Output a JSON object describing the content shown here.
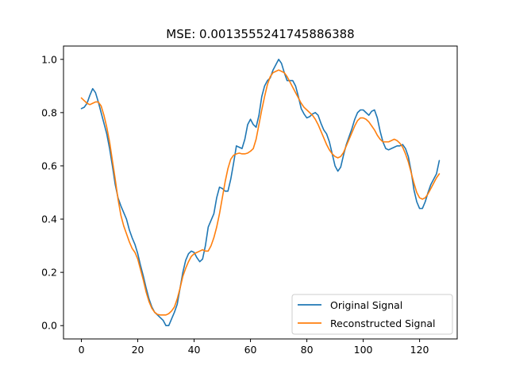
{
  "chart_data": {
    "type": "line",
    "title": "MSE: 0.0013555241745886388",
    "xlabel": "",
    "ylabel": "",
    "xlim": [
      -6.35,
      133.35
    ],
    "ylim": [
      -0.05,
      1.05
    ],
    "xticks": [
      0,
      20,
      40,
      60,
      80,
      100,
      120
    ],
    "xtick_labels": [
      "0",
      "20",
      "40",
      "60",
      "80",
      "100",
      "120"
    ],
    "yticks": [
      0.0,
      0.2,
      0.4,
      0.6,
      0.8,
      1.0
    ],
    "ytick_labels": [
      "0.0",
      "0.2",
      "0.4",
      "0.6",
      "0.8",
      "1.0"
    ],
    "grid": false,
    "legend_position": "lower-right",
    "series": [
      {
        "name": "Original Signal",
        "color": "#1f77b4",
        "x": [
          0,
          1,
          2,
          3,
          4,
          5,
          6,
          7,
          8,
          9,
          10,
          11,
          12,
          13,
          14,
          15,
          16,
          17,
          18,
          19,
          20,
          21,
          22,
          23,
          24,
          25,
          26,
          27,
          28,
          29,
          30,
          31,
          32,
          33,
          34,
          35,
          36,
          37,
          38,
          39,
          40,
          41,
          42,
          43,
          44,
          45,
          46,
          47,
          48,
          49,
          50,
          51,
          52,
          53,
          54,
          55,
          56,
          57,
          58,
          59,
          60,
          61,
          62,
          63,
          64,
          65,
          66,
          67,
          68,
          69,
          70,
          71,
          72,
          73,
          74,
          75,
          76,
          77,
          78,
          79,
          80,
          81,
          82,
          83,
          84,
          85,
          86,
          87,
          88,
          89,
          90,
          91,
          92,
          93,
          94,
          95,
          96,
          97,
          98,
          99,
          100,
          101,
          102,
          103,
          104,
          105,
          106,
          107,
          108,
          109,
          110,
          111,
          112,
          113,
          114,
          115,
          116,
          117,
          118,
          119,
          120,
          121,
          122,
          123,
          124,
          125,
          126,
          127
        ],
        "values": [
          0.815,
          0.82,
          0.835,
          0.865,
          0.89,
          0.875,
          0.84,
          0.8,
          0.76,
          0.72,
          0.665,
          0.6,
          0.53,
          0.48,
          0.45,
          0.425,
          0.4,
          0.36,
          0.33,
          0.305,
          0.27,
          0.225,
          0.185,
          0.14,
          0.1,
          0.07,
          0.05,
          0.04,
          0.03,
          0.02,
          0.0,
          0.0,
          0.025,
          0.05,
          0.08,
          0.14,
          0.2,
          0.245,
          0.27,
          0.28,
          0.275,
          0.255,
          0.24,
          0.25,
          0.3,
          0.37,
          0.395,
          0.42,
          0.48,
          0.52,
          0.515,
          0.505,
          0.505,
          0.55,
          0.61,
          0.675,
          0.67,
          0.665,
          0.7,
          0.755,
          0.775,
          0.755,
          0.745,
          0.79,
          0.86,
          0.9,
          0.92,
          0.93,
          0.96,
          0.98,
          1.0,
          0.985,
          0.95,
          0.92,
          0.92,
          0.92,
          0.9,
          0.86,
          0.815,
          0.795,
          0.78,
          0.785,
          0.795,
          0.8,
          0.79,
          0.76,
          0.735,
          0.72,
          0.69,
          0.645,
          0.6,
          0.58,
          0.595,
          0.64,
          0.68,
          0.71,
          0.74,
          0.775,
          0.8,
          0.81,
          0.81,
          0.8,
          0.79,
          0.805,
          0.81,
          0.78,
          0.73,
          0.69,
          0.665,
          0.66,
          0.665,
          0.67,
          0.675,
          0.675,
          0.68,
          0.665,
          0.635,
          0.58,
          0.51,
          0.465,
          0.44,
          0.44,
          0.465,
          0.5,
          0.53,
          0.55,
          0.57,
          0.62
        ]
      },
      {
        "name": "Reconstructed Signal",
        "color": "#ff7f0e",
        "x": [
          0,
          1,
          2,
          3,
          4,
          5,
          6,
          7,
          8,
          9,
          10,
          11,
          12,
          13,
          14,
          15,
          16,
          17,
          18,
          19,
          20,
          21,
          22,
          23,
          24,
          25,
          26,
          27,
          28,
          29,
          30,
          31,
          32,
          33,
          34,
          35,
          36,
          37,
          38,
          39,
          40,
          41,
          42,
          43,
          44,
          45,
          46,
          47,
          48,
          49,
          50,
          51,
          52,
          53,
          54,
          55,
          56,
          57,
          58,
          59,
          60,
          61,
          62,
          63,
          64,
          65,
          66,
          67,
          68,
          69,
          70,
          71,
          72,
          73,
          74,
          75,
          76,
          77,
          78,
          79,
          80,
          81,
          82,
          83,
          84,
          85,
          86,
          87,
          88,
          89,
          90,
          91,
          92,
          93,
          94,
          95,
          96,
          97,
          98,
          99,
          100,
          101,
          102,
          103,
          104,
          105,
          106,
          107,
          108,
          109,
          110,
          111,
          112,
          113,
          114,
          115,
          116,
          117,
          118,
          119,
          120,
          121,
          122,
          123,
          124,
          125,
          126,
          127
        ],
        "values": [
          0.855,
          0.845,
          0.835,
          0.83,
          0.835,
          0.84,
          0.84,
          0.825,
          0.79,
          0.745,
          0.69,
          0.62,
          0.55,
          0.475,
          0.415,
          0.375,
          0.345,
          0.315,
          0.29,
          0.275,
          0.25,
          0.21,
          0.17,
          0.125,
          0.09,
          0.065,
          0.05,
          0.042,
          0.04,
          0.04,
          0.04,
          0.045,
          0.055,
          0.07,
          0.1,
          0.14,
          0.185,
          0.215,
          0.24,
          0.26,
          0.27,
          0.275,
          0.28,
          0.285,
          0.28,
          0.28,
          0.3,
          0.33,
          0.37,
          0.42,
          0.48,
          0.54,
          0.59,
          0.625,
          0.64,
          0.645,
          0.648,
          0.645,
          0.645,
          0.648,
          0.655,
          0.665,
          0.7,
          0.755,
          0.81,
          0.86,
          0.905,
          0.935,
          0.95,
          0.955,
          0.96,
          0.955,
          0.95,
          0.935,
          0.915,
          0.895,
          0.875,
          0.855,
          0.835,
          0.82,
          0.81,
          0.8,
          0.79,
          0.775,
          0.755,
          0.73,
          0.705,
          0.68,
          0.66,
          0.645,
          0.635,
          0.63,
          0.635,
          0.65,
          0.675,
          0.7,
          0.725,
          0.75,
          0.77,
          0.78,
          0.78,
          0.775,
          0.765,
          0.75,
          0.735,
          0.715,
          0.7,
          0.69,
          0.69,
          0.69,
          0.695,
          0.7,
          0.695,
          0.685,
          0.67,
          0.645,
          0.615,
          0.575,
          0.535,
          0.5,
          0.48,
          0.475,
          0.48,
          0.495,
          0.515,
          0.535,
          0.555,
          0.57
        ]
      }
    ]
  }
}
